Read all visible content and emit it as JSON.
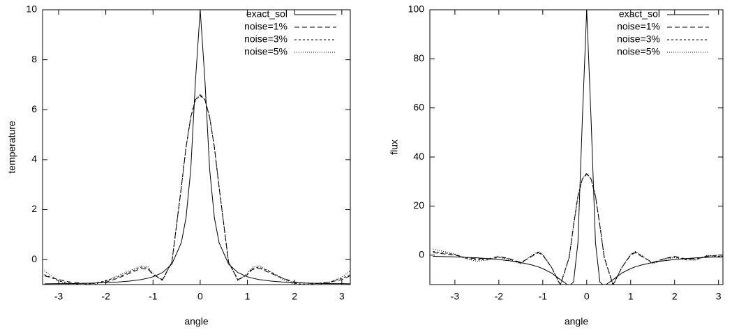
{
  "chart_data": [
    {
      "type": "line",
      "xlabel": "angle",
      "ylabel": "temperature",
      "xlim": [
        -3.34,
        3.18
      ],
      "ylim": [
        -1,
        10
      ],
      "xticks": [
        -3,
        -2,
        -1,
        0,
        1,
        2,
        3
      ],
      "yticks": [
        0,
        2,
        4,
        6,
        8,
        10
      ],
      "legend": "upper right",
      "x": [
        -3.3,
        -3,
        -2.75,
        -2.5,
        -2.25,
        -2,
        -1.75,
        -1.5,
        -1.25,
        -1.1,
        -1,
        -0.8,
        -0.6,
        -0.4,
        -0.3,
        -0.2,
        -0.1,
        0,
        0.1,
        0.2,
        0.3,
        0.4,
        0.6,
        0.8,
        1,
        1.1,
        1.25,
        1.5,
        1.75,
        2,
        2.25,
        2.5,
        2.75,
        3,
        3.18
      ],
      "series": [
        {
          "name": "exact_sol",
          "color": "#000000",
          "dash": "solid",
          "values": [
            -0.97,
            -0.96,
            -0.96,
            -0.95,
            -0.94,
            -0.92,
            -0.9,
            -0.86,
            -0.8,
            -0.74,
            -0.69,
            -0.52,
            -0.18,
            0.68,
            1.68,
            3.61,
            7.17,
            10,
            7.17,
            3.61,
            1.68,
            0.68,
            -0.18,
            -0.52,
            -0.69,
            -0.74,
            -0.8,
            -0.86,
            -0.9,
            -0.92,
            -0.94,
            -0.95,
            -0.96,
            -0.96,
            -0.97
          ]
        },
        {
          "name": "noise=1%",
          "color": "#000000",
          "dash": "dashed",
          "values": [
            -0.65,
            -0.8,
            -0.9,
            -0.95,
            -0.95,
            -0.9,
            -0.75,
            -0.55,
            -0.35,
            -0.4,
            -0.6,
            -0.8,
            -0.1,
            2.9,
            4.5,
            5.7,
            6.4,
            6.6,
            6.4,
            5.7,
            4.5,
            2.9,
            -0.1,
            -0.8,
            -0.6,
            -0.4,
            -0.35,
            -0.55,
            -0.75,
            -0.9,
            -0.95,
            -0.95,
            -0.9,
            -0.8,
            -0.65
          ]
        },
        {
          "name": "noise=3%",
          "color": "#000000",
          "dash": "short-dashed",
          "values": [
            -0.6,
            -0.85,
            -0.95,
            -1.0,
            -0.95,
            -0.85,
            -0.7,
            -0.5,
            -0.3,
            -0.35,
            -0.6,
            -0.82,
            -0.1,
            2.9,
            4.5,
            5.7,
            6.4,
            6.55,
            6.4,
            5.7,
            4.5,
            2.9,
            -0.1,
            -0.82,
            -0.6,
            -0.35,
            -0.3,
            -0.5,
            -0.75,
            -0.95,
            -1.0,
            -0.95,
            -0.9,
            -0.75,
            -0.6
          ]
        },
        {
          "name": "noise=5%",
          "color": "#000000",
          "dash": "dotted",
          "values": [
            -0.45,
            -0.85,
            -1.0,
            -1.05,
            -1.0,
            -0.85,
            -0.65,
            -0.45,
            -0.25,
            -0.3,
            -0.55,
            -0.85,
            -0.1,
            2.9,
            4.5,
            5.7,
            6.4,
            6.6,
            6.4,
            5.7,
            4.5,
            2.9,
            -0.1,
            -0.85,
            -0.55,
            -0.3,
            -0.25,
            -0.5,
            -0.8,
            -1.0,
            -1.05,
            -1.0,
            -0.9,
            -0.7,
            -0.45
          ]
        }
      ]
    },
    {
      "type": "line",
      "xlabel": "angle",
      "ylabel": "flux",
      "xlim": [
        -3.57,
        3.1
      ],
      "ylim": [
        -12,
        100
      ],
      "xticks": [
        -3,
        -2,
        -1,
        0,
        1,
        2,
        3
      ],
      "yticks": [
        0,
        20,
        40,
        60,
        80,
        100
      ],
      "legend": "upper right",
      "x": [
        -3.5,
        -3,
        -2.75,
        -2.5,
        -2.25,
        -2,
        -1.75,
        -1.5,
        -1.25,
        -1.1,
        -1,
        -0.8,
        -0.6,
        -0.4,
        -0.3,
        -0.2,
        -0.1,
        0,
        0.1,
        0.2,
        0.3,
        0.4,
        0.6,
        0.8,
        1,
        1.1,
        1.25,
        1.5,
        1.75,
        2,
        2.25,
        2.5,
        2.75,
        3,
        3.1
      ],
      "series": [
        {
          "name": "exact_sol",
          "color": "#000000",
          "dash": "solid",
          "values": [
            -0.5,
            -0.7,
            -0.9,
            -1.1,
            -1.4,
            -1.8,
            -2.3,
            -3.0,
            -4.0,
            -4.8,
            -5.5,
            -7.3,
            -10,
            -12.5,
            -11,
            5,
            55,
            100,
            55,
            5,
            -11,
            -12.5,
            -10,
            -7.3,
            -5.5,
            -4.8,
            -4.0,
            -3.0,
            -2.3,
            -1.8,
            -1.4,
            -1.1,
            -0.9,
            -0.7,
            -0.6
          ]
        },
        {
          "name": "noise=1%",
          "color": "#000000",
          "dash": "dashed",
          "values": [
            1,
            0,
            -1,
            -1.5,
            -1.5,
            -0.5,
            -1.5,
            -3,
            -0.5,
            1.0,
            0,
            -5,
            -12,
            -1,
            12,
            24,
            31,
            33,
            31,
            24,
            12,
            -1,
            -12,
            -5,
            0,
            1.0,
            -0.5,
            -3,
            -1.5,
            -0.5,
            -1.5,
            -1.5,
            -0.5,
            0,
            0
          ]
        },
        {
          "name": "noise=3%",
          "color": "#000000",
          "dash": "short-dashed",
          "values": [
            1.5,
            0.3,
            -1.2,
            -2,
            -1.8,
            -0.8,
            -1.6,
            -3.3,
            -0.3,
            1.2,
            0.2,
            -5,
            -12.2,
            -1,
            12,
            24,
            31,
            33.3,
            31,
            24,
            12,
            -1,
            -12.2,
            -5,
            0.2,
            1.3,
            -0.3,
            -3.2,
            -1.6,
            -0.7,
            -1.8,
            -1.6,
            -0.2,
            -0.5,
            -0.5
          ]
        },
        {
          "name": "noise=5%",
          "color": "#000000",
          "dash": "dotted",
          "values": [
            2.5,
            0.5,
            -1.5,
            -2.5,
            -2,
            -1,
            -1.8,
            -3.6,
            0,
            1.5,
            0.3,
            -5,
            -12.5,
            -1,
            12,
            24,
            31,
            33.5,
            31,
            24,
            12,
            -1,
            -12.5,
            -5,
            0.3,
            1.5,
            0,
            -3.5,
            -1.8,
            -1,
            -2,
            -2,
            0,
            -1,
            -1
          ]
        }
      ]
    }
  ]
}
